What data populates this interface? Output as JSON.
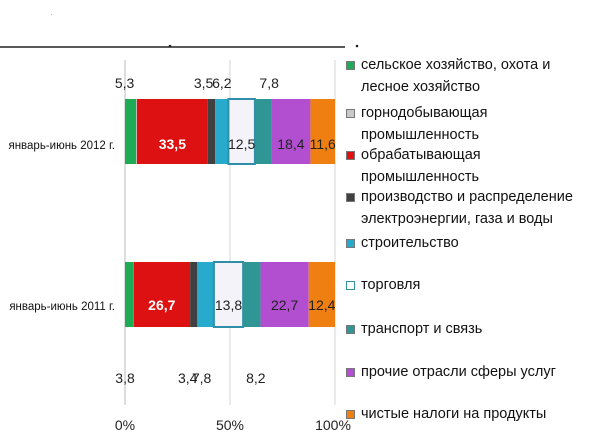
{
  "chart_data": {
    "type": "bar",
    "orientation": "horizontal",
    "stacked": "percent",
    "categories": [
      "январь-июнь 2012 г.",
      "январь-июнь 2011 г."
    ],
    "series": [
      {
        "name": "сельское хозяйство, охота и лесное хозяйство",
        "color": "#1faa55",
        "values": [
          5.3,
          3.8
        ],
        "labels": [
          "5,3",
          "3,8"
        ]
      },
      {
        "name": "горнодобывающая промышленность",
        "color": "#c9c9c9",
        "values": [
          0.3,
          0.2
        ],
        "labels": [
          "",
          ""
        ]
      },
      {
        "name": "обрабатывающая промышленность",
        "color": "#dd1111",
        "values": [
          33.5,
          26.7
        ],
        "labels": [
          "33,5",
          "26,7"
        ]
      },
      {
        "name": "производство и распределение электроэнергии, газа и воды",
        "color": "#404040",
        "values": [
          3.5,
          3.4
        ],
        "labels": [
          "3,5",
          "3,4"
        ]
      },
      {
        "name": "строительство",
        "color": "#28aacc",
        "values": [
          6.2,
          7.8
        ],
        "labels": [
          "6,2",
          "7,8"
        ]
      },
      {
        "name": "торговля",
        "color": "#f3f3f9",
        "values": [
          12.5,
          13.8
        ],
        "labels": [
          "12,5",
          "13,8"
        ]
      },
      {
        "name": "транспорт и связь",
        "color": "#2f9595",
        "values": [
          7.8,
          8.2
        ],
        "labels": [
          "7,8",
          "8,2"
        ]
      },
      {
        "name": "прочие отрасли сферы услуг",
        "color": "#b24fd1",
        "values": [
          18.4,
          22.7
        ],
        "labels": [
          "18,4",
          "22,7"
        ]
      },
      {
        "name": "чистые налоги на продукты",
        "color": "#f07f12",
        "values": [
          11.6,
          12.4
        ],
        "labels": [
          "11,6",
          "12,4"
        ]
      }
    ],
    "x_ticks": [
      "0%",
      "50%",
      "100%"
    ],
    "xlim": [
      0,
      100
    ],
    "legend_position": "right"
  }
}
